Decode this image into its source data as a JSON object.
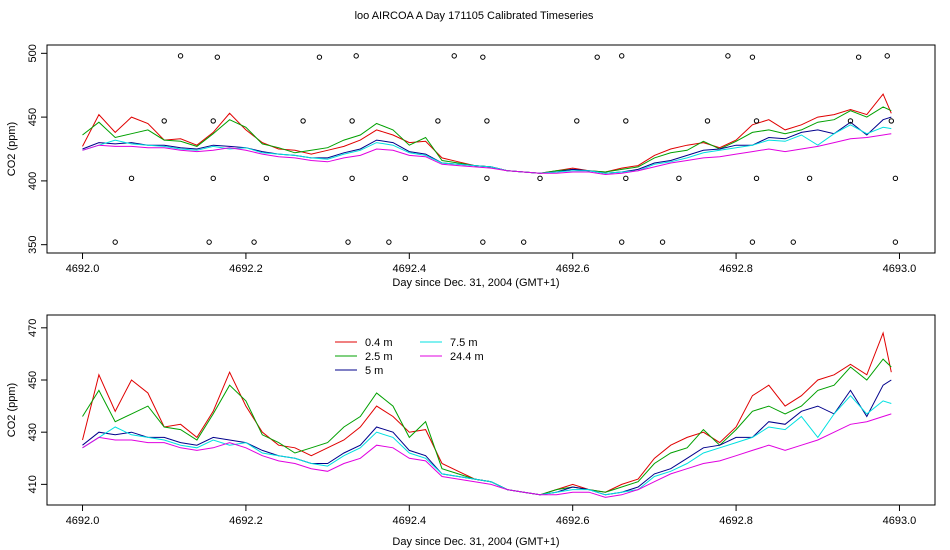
{
  "title": "loo AIRCOA A  Day 171105  Calibrated Timeseries",
  "colors": {
    "0.4 m": "#e00000",
    "2.5 m": "#00a000",
    "5 m": "#00008b",
    "7.5 m": "#00e0e0",
    "24.4 m": "#e000e0",
    "frame": "#000000"
  },
  "chart_data": [
    {
      "type": "line",
      "title": "loo AIRCOA A  Day 171105  Calibrated Timeseries",
      "xlabel": "Day since Dec. 31, 2004 (GMT+1)",
      "ylabel": "CO2 (ppm)",
      "xlim": [
        4692.0,
        4693.0
      ],
      "ylim": [
        350,
        500
      ],
      "xticks": [
        "4692.0",
        "4692.2",
        "4692.4",
        "4692.6",
        "4692.8",
        "4693.0"
      ],
      "yticks": [
        "350",
        "400",
        "450",
        "500"
      ],
      "x": [
        4692.0,
        4692.02,
        4692.04,
        4692.06,
        4692.08,
        4692.1,
        4692.12,
        4692.14,
        4692.16,
        4692.18,
        4692.2,
        4692.22,
        4692.24,
        4692.26,
        4692.28,
        4692.3,
        4692.32,
        4692.34,
        4692.36,
        4692.38,
        4692.4,
        4692.42,
        4692.44,
        4692.46,
        4692.48,
        4692.5,
        4692.52,
        4692.54,
        4692.56,
        4692.58,
        4692.6,
        4692.62,
        4692.64,
        4692.66,
        4692.68,
        4692.7,
        4692.72,
        4692.74,
        4692.76,
        4692.78,
        4692.8,
        4692.82,
        4692.84,
        4692.86,
        4692.88,
        4692.9,
        4692.92,
        4692.94,
        4692.96,
        4692.98,
        4692.99
      ],
      "series": [
        {
          "name": "0.4 m",
          "values": [
            427,
            452,
            438,
            450,
            445,
            432,
            433,
            428,
            438,
            453,
            440,
            430,
            425,
            424,
            421,
            424,
            427,
            432,
            440,
            436,
            430,
            431,
            418,
            415,
            412,
            411,
            408,
            407,
            406,
            408,
            410,
            408,
            407,
            410,
            412,
            420,
            425,
            428,
            430,
            426,
            432,
            444,
            448,
            440,
            444,
            450,
            452,
            456,
            452,
            468,
            453
          ]
        },
        {
          "name": "2.5 m",
          "values": [
            436,
            446,
            434,
            437,
            440,
            432,
            431,
            427,
            437,
            448,
            442,
            429,
            426,
            422,
            424,
            426,
            432,
            436,
            445,
            440,
            428,
            434,
            416,
            414,
            412,
            411,
            408,
            407,
            406,
            408,
            409,
            408,
            407,
            409,
            411,
            418,
            422,
            424,
            431,
            425,
            431,
            438,
            440,
            437,
            440,
            446,
            448,
            455,
            450,
            458,
            455
          ]
        },
        {
          "name": "5 m",
          "values": [
            425,
            430,
            429,
            430,
            428,
            428,
            426,
            425,
            428,
            427,
            426,
            423,
            421,
            420,
            418,
            418,
            422,
            425,
            432,
            430,
            423,
            421,
            414,
            413,
            412,
            411,
            408,
            407,
            406,
            407,
            409,
            408,
            406,
            407,
            409,
            414,
            416,
            420,
            424,
            425,
            428,
            428,
            434,
            433,
            438,
            440,
            437,
            446,
            436,
            448,
            450
          ]
        },
        {
          "name": "7.5 m",
          "values": [
            424,
            428,
            432,
            429,
            428,
            427,
            425,
            424,
            427,
            425,
            426,
            422,
            421,
            420,
            418,
            417,
            421,
            424,
            430,
            428,
            422,
            420,
            414,
            413,
            412,
            411,
            408,
            407,
            406,
            407,
            408,
            408,
            406,
            407,
            408,
            413,
            415,
            418,
            422,
            424,
            426,
            428,
            432,
            431,
            436,
            428,
            437,
            444,
            437,
            442,
            441
          ]
        },
        {
          "name": "24.4 m",
          "values": [
            424,
            428,
            427,
            427,
            426,
            426,
            424,
            423,
            424,
            426,
            424,
            421,
            419,
            418,
            416,
            415,
            418,
            420,
            425,
            424,
            420,
            419,
            413,
            412,
            411,
            410,
            408,
            407,
            406,
            406,
            407,
            407,
            405,
            406,
            408,
            411,
            414,
            416,
            418,
            419,
            421,
            423,
            425,
            423,
            425,
            427,
            430,
            433,
            434,
            436,
            437
          ]
        }
      ],
      "markers": {
        "x": [
          4692.04,
          4692.06,
          4692.1,
          4692.12,
          4692.155,
          4692.16,
          4692.16,
          4692.165,
          4692.21,
          4692.225,
          4692.27,
          4692.29,
          4692.325,
          4692.33,
          4692.33,
          4692.335,
          4692.375,
          4692.395,
          4692.435,
          4692.455,
          4692.49,
          4692.495,
          4692.495,
          4692.49,
          4692.54,
          4692.56,
          4692.605,
          4692.63,
          4692.66,
          4692.665,
          4692.665,
          4692.66,
          4692.71,
          4692.73,
          4692.765,
          4692.79,
          4692.82,
          4692.825,
          4692.825,
          4692.82,
          4692.87,
          4692.89,
          4692.94,
          4692.95,
          4692.985,
          4692.99,
          4692.995,
          4692.995
        ],
        "y": [
          352,
          402,
          447,
          498,
          352,
          402,
          447,
          497,
          352,
          402,
          447,
          497,
          352,
          402,
          447,
          498,
          352,
          402,
          447,
          498,
          352,
          402,
          447,
          497,
          352,
          402,
          447,
          497,
          352,
          402,
          447,
          498,
          352,
          402,
          447,
          498,
          352,
          402,
          447,
          497,
          352,
          402,
          447,
          497,
          498,
          447,
          402,
          352
        ]
      },
      "legend": "none",
      "grid": false
    },
    {
      "type": "line",
      "xlabel": "Day since Dec. 31, 2004 (GMT+1)",
      "ylabel": "CO2 (ppm)",
      "xlim": [
        4692.0,
        4693.0
      ],
      "ylim": [
        405,
        472
      ],
      "xticks": [
        "4692.0",
        "4692.2",
        "4692.4",
        "4692.6",
        "4692.8",
        "4693.0"
      ],
      "yticks": [
        "410",
        "430",
        "450",
        "470"
      ],
      "x": [
        4692.0,
        4692.02,
        4692.04,
        4692.06,
        4692.08,
        4692.1,
        4692.12,
        4692.14,
        4692.16,
        4692.18,
        4692.2,
        4692.22,
        4692.24,
        4692.26,
        4692.28,
        4692.3,
        4692.32,
        4692.34,
        4692.36,
        4692.38,
        4692.4,
        4692.42,
        4692.44,
        4692.46,
        4692.48,
        4692.5,
        4692.52,
        4692.54,
        4692.56,
        4692.58,
        4692.6,
        4692.62,
        4692.64,
        4692.66,
        4692.68,
        4692.7,
        4692.72,
        4692.74,
        4692.76,
        4692.78,
        4692.8,
        4692.82,
        4692.84,
        4692.86,
        4692.88,
        4692.9,
        4692.92,
        4692.94,
        4692.96,
        4692.98,
        4692.99
      ],
      "series": [
        {
          "name": "0.4 m",
          "values": [
            427,
            452,
            438,
            450,
            445,
            432,
            433,
            428,
            438,
            453,
            440,
            430,
            425,
            424,
            421,
            424,
            427,
            432,
            440,
            436,
            430,
            431,
            418,
            415,
            412,
            411,
            408,
            407,
            406,
            408,
            410,
            408,
            407,
            410,
            412,
            420,
            425,
            428,
            430,
            426,
            432,
            444,
            448,
            440,
            444,
            450,
            452,
            456,
            452,
            468,
            453
          ]
        },
        {
          "name": "2.5 m",
          "values": [
            436,
            446,
            434,
            437,
            440,
            432,
            431,
            427,
            437,
            448,
            442,
            429,
            426,
            422,
            424,
            426,
            432,
            436,
            445,
            440,
            428,
            434,
            416,
            414,
            412,
            411,
            408,
            407,
            406,
            408,
            409,
            408,
            407,
            409,
            411,
            418,
            422,
            424,
            431,
            425,
            431,
            438,
            440,
            437,
            440,
            446,
            448,
            455,
            450,
            458,
            455
          ]
        },
        {
          "name": "5 m",
          "values": [
            425,
            430,
            429,
            430,
            428,
            428,
            426,
            425,
            428,
            427,
            426,
            423,
            421,
            420,
            418,
            418,
            422,
            425,
            432,
            430,
            423,
            421,
            414,
            413,
            412,
            411,
            408,
            407,
            406,
            407,
            409,
            408,
            406,
            407,
            409,
            414,
            416,
            420,
            424,
            425,
            428,
            428,
            434,
            433,
            438,
            440,
            437,
            446,
            436,
            448,
            450
          ]
        },
        {
          "name": "7.5 m",
          "values": [
            424,
            428,
            432,
            429,
            428,
            427,
            425,
            424,
            427,
            425,
            426,
            422,
            421,
            420,
            418,
            417,
            421,
            424,
            430,
            428,
            422,
            420,
            414,
            413,
            412,
            411,
            408,
            407,
            406,
            407,
            408,
            408,
            406,
            407,
            408,
            413,
            415,
            418,
            422,
            424,
            426,
            428,
            432,
            431,
            436,
            428,
            437,
            444,
            437,
            442,
            441
          ]
        },
        {
          "name": "24.4 m",
          "values": [
            424,
            428,
            427,
            427,
            426,
            426,
            424,
            423,
            424,
            426,
            424,
            421,
            419,
            418,
            416,
            415,
            418,
            420,
            425,
            424,
            420,
            419,
            413,
            412,
            411,
            410,
            408,
            407,
            406,
            406,
            407,
            407,
            405,
            406,
            408,
            411,
            414,
            416,
            418,
            419,
            421,
            423,
            425,
            423,
            425,
            427,
            430,
            433,
            434,
            436,
            437
          ]
        }
      ],
      "legend": "top-left",
      "legend_entries": [
        "0.4 m",
        "2.5 m",
        "5 m",
        "7.5 m",
        "24.4 m"
      ],
      "grid": false
    }
  ]
}
